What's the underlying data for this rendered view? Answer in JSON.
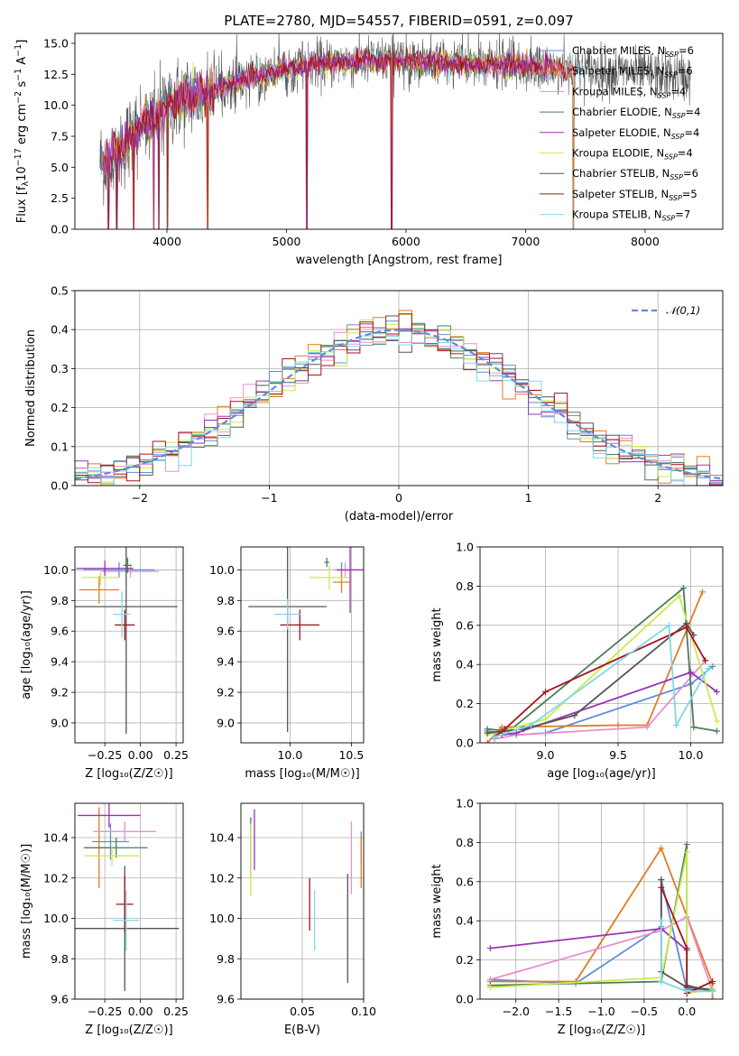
{
  "title": "PLATE=2780, MJD=54557, FIBERID=0591, z=0.097",
  "model_colors": [
    "#5b8fd6",
    "#e07c24",
    "#e88fcf",
    "#4a7c59",
    "#9a32b4",
    "#c9ec4e",
    "#555555",
    "#a3141e",
    "#7fd9e2"
  ],
  "models": [
    {
      "label": "Chabrier MILES, N",
      "sub": "SSP",
      "tail": "=6"
    },
    {
      "label": "Salpeter MILES, N",
      "sub": "SSP",
      "tail": "=6"
    },
    {
      "label": "Kroupa MILES, N",
      "sub": "SSP",
      "tail": "=4"
    },
    {
      "label": "Chabrier ELODIE, N",
      "sub": "SSP",
      "tail": "=4"
    },
    {
      "label": "Salpeter ELODIE, N",
      "sub": "SSP",
      "tail": "=4"
    },
    {
      "label": "Kroupa ELODIE, N",
      "sub": "SSP",
      "tail": "=4"
    },
    {
      "label": "Chabrier STELIB, N",
      "sub": "SSP",
      "tail": "=6"
    },
    {
      "label": "Salpeter STELIB, N",
      "sub": "SSP",
      "tail": "=5"
    },
    {
      "label": "Kroupa STELIB, N",
      "sub": "SSP",
      "tail": "=7"
    }
  ],
  "chart_data": [
    {
      "id": "spectrum",
      "type": "line",
      "xlabel": "wavelength [Angstrom, rest frame]",
      "ylabel_parts": [
        "Flux [f",
        "λ",
        "10",
        "−17",
        " erg cm",
        "−2",
        " s",
        "−1",
        " A",
        "−1",
        "]"
      ],
      "xlim": [
        3230,
        8650
      ],
      "ylim": [
        0,
        15.8
      ],
      "xticks": [
        4000,
        5000,
        6000,
        7000,
        8000
      ],
      "yticks": [
        0.0,
        2.5,
        5.0,
        7.5,
        10.0,
        12.5,
        15.0
      ],
      "ytick_labels": [
        "0.0",
        "2.5",
        "5.0",
        "7.5",
        "10.0",
        "12.5",
        "15.0"
      ],
      "continuum": {
        "x": [
          3450,
          3600,
          3700,
          3800,
          3900,
          4000,
          4100,
          4200,
          4300,
          4400,
          4500,
          4600,
          4700,
          4800,
          4900,
          5000,
          5200,
          5400,
          5600,
          5800,
          6000,
          6200,
          6400,
          6600,
          6800,
          7000,
          7200,
          7400,
          7600,
          7800,
          8000,
          8200,
          8400
        ],
        "y": [
          5.5,
          6.2,
          7.5,
          8.5,
          9.0,
          10.0,
          10.5,
          10.8,
          10.8,
          11.2,
          11.6,
          12.0,
          12.2,
          12.4,
          12.7,
          12.9,
          13.2,
          13.4,
          13.5,
          13.6,
          13.6,
          13.5,
          13.4,
          13.3,
          13.3,
          13.1,
          13.0,
          12.9,
          12.8,
          12.7,
          12.5,
          12.4,
          12.2
        ]
      },
      "spike_wavelengths": [
        3510,
        3580,
        3720,
        3890,
        3930,
        4005,
        4340,
        5170,
        5880,
        7400
      ]
    },
    {
      "id": "residuals",
      "type": "histogram",
      "xlabel": "(data-model)/error",
      "ylabel": "Normed distribution",
      "xlim": [
        -2.5,
        2.5
      ],
      "ylim": [
        0,
        0.5
      ],
      "xticks": [
        -2,
        -1,
        0,
        1,
        2
      ],
      "xtick_labels": [
        "−2",
        "−1",
        "0",
        "1",
        "2"
      ],
      "yticks": [
        0.0,
        0.1,
        0.2,
        0.3,
        0.4,
        0.5
      ],
      "ytick_labels": [
        "0.0",
        "0.1",
        "0.2",
        "0.3",
        "0.4",
        "0.5"
      ],
      "bin_width": 0.1,
      "legend": "𝒩(0,1)",
      "gaussian": {
        "mu": 0,
        "sigma": 1
      }
    },
    {
      "id": "age_vs_Z",
      "type": "scatter_errorbar",
      "xlabel": "Z [log₁₀(Z/Z☉)]",
      "ylabel": "age  [log₁₀(age/yr)]",
      "xlim": [
        -0.46,
        0.3
      ],
      "ylim": [
        8.87,
        10.15
      ],
      "xticks": [
        -0.25,
        0.0,
        0.25
      ],
      "xtick_labels": [
        "−0.25",
        "0.00",
        "0.25"
      ],
      "yticks": [
        9.0,
        9.2,
        9.4,
        9.6,
        9.8,
        10.0
      ],
      "ytick_labels": [
        "9.0",
        "9.2",
        "9.4",
        "9.6",
        "9.8",
        "10.0"
      ],
      "points": [
        {
          "x": -0.15,
          "xerr": 0.25,
          "y": 10.0,
          "yerr": 0.05
        },
        {
          "x": -0.29,
          "xerr": 0.14,
          "y": 9.87,
          "yerr": 0.09
        },
        {
          "x": -0.07,
          "xerr": 0.2,
          "y": 9.99,
          "yerr": 0.04
        },
        {
          "x": -0.09,
          "xerr": 0.03,
          "y": 10.03,
          "yerr": 0.05
        },
        {
          "x": -0.25,
          "xerr": 0.2,
          "y": 10.01,
          "yerr": 0.05
        },
        {
          "x": -0.28,
          "xerr": 0.13,
          "y": 9.95,
          "yerr": 0.05
        },
        {
          "x": -0.1,
          "xerr": 0.36,
          "y": 9.76,
          "yerr": 0.83
        },
        {
          "x": -0.11,
          "xerr": 0.07,
          "y": 9.64,
          "yerr": 0.1
        },
        {
          "x": -0.13,
          "xerr": 0.06,
          "y": 9.71,
          "yerr": 0.15
        }
      ]
    },
    {
      "id": "age_vs_mass",
      "type": "scatter_errorbar",
      "xlabel": "mass [log₁₀(M/M☉)]",
      "ylabel": "",
      "xlim": [
        9.6,
        10.6
      ],
      "ylim": [
        8.87,
        10.15
      ],
      "xticks": [
        10.0,
        10.5
      ],
      "xtick_labels": [
        "10.0",
        "10.5"
      ],
      "yticks": [
        9.0,
        9.2,
        9.4,
        9.6,
        9.8,
        10.0
      ],
      "ytick_labels": [
        "9.0",
        "9.2",
        "9.4",
        "9.6",
        "9.8",
        "10.0"
      ],
      "points": [
        {
          "x": 10.42,
          "xerr": 0.06,
          "y": 10.0,
          "yerr": 0.05
        },
        {
          "x": 10.42,
          "xerr": 0.07,
          "y": 9.92,
          "yerr": 0.07
        },
        {
          "x": 10.45,
          "xerr": 0.1,
          "y": 10.0,
          "yerr": 0.05
        },
        {
          "x": 10.3,
          "xerr": 0.02,
          "y": 10.05,
          "yerr": 0.03
        },
        {
          "x": 10.49,
          "xerr": 0.11,
          "y": 10.0,
          "yerr": 0.28
        },
        {
          "x": 10.32,
          "xerr": 0.16,
          "y": 9.95,
          "yerr": 0.08
        },
        {
          "x": 9.98,
          "xerr": 0.32,
          "y": 9.76,
          "yerr": 0.82
        },
        {
          "x": 10.08,
          "xerr": 0.16,
          "y": 9.64,
          "yerr": 0.1
        },
        {
          "x": 9.98,
          "xerr": 0.11,
          "y": 9.71,
          "yerr": 0.1
        }
      ]
    },
    {
      "id": "massweight_vs_age",
      "type": "line",
      "xlabel": "age  [log₁₀(age/yr)]",
      "ylabel": "mass weight",
      "xlim": [
        8.55,
        10.22
      ],
      "ylim": [
        0,
        1.0
      ],
      "xticks": [
        9.0,
        9.5,
        10.0
      ],
      "xtick_labels": [
        "9.0",
        "9.5",
        "10.0"
      ],
      "yticks": [
        0.0,
        0.2,
        0.4,
        0.6,
        0.8,
        1.0
      ],
      "ytick_labels": [
        "0.0",
        "0.2",
        "0.4",
        "0.6",
        "0.8",
        "1.0"
      ],
      "series": [
        {
          "x": [
            8.6,
            8.8,
            9.0,
            10.0,
            10.15
          ],
          "y": [
            0.06,
            0.04,
            0.05,
            0.3,
            0.39
          ]
        },
        {
          "x": [
            8.6,
            8.7,
            9.5,
            9.7,
            10.08
          ],
          "y": [
            0.0,
            0.08,
            0.09,
            0.09,
            0.77
          ]
        },
        {
          "x": [
            8.65,
            8.8,
            9.7,
            10.1
          ],
          "y": [
            0.02,
            0.04,
            0.08,
            0.42
          ]
        },
        {
          "x": [
            8.6,
            8.75,
            9.95,
            10.02,
            10.18
          ],
          "y": [
            0.07,
            0.06,
            0.79,
            0.08,
            0.06
          ]
        },
        {
          "x": [
            8.7,
            8.8,
            10.0,
            10.18
          ],
          "y": [
            0.04,
            0.05,
            0.36,
            0.26
          ]
        },
        {
          "x": [
            8.6,
            9.0,
            9.92,
            10.18
          ],
          "y": [
            0.04,
            0.12,
            0.75,
            0.11
          ]
        },
        {
          "x": [
            8.6,
            8.85,
            9.2,
            9.97,
            10.02
          ],
          "y": [
            0.05,
            0.07,
            0.14,
            0.61,
            0.55
          ]
        },
        {
          "x": [
            8.65,
            8.72,
            9.0,
            9.97,
            10.1
          ],
          "y": [
            0.03,
            0.07,
            0.26,
            0.59,
            0.42
          ]
        },
        {
          "x": [
            8.65,
            8.9,
            9.85,
            9.9,
            10.12
          ],
          "y": [
            0.03,
            0.09,
            0.6,
            0.09,
            0.38
          ]
        }
      ]
    },
    {
      "id": "mass_vs_Z",
      "type": "scatter_errorbar",
      "xlabel": "Z [log₁₀(Z/Z☉)]",
      "ylabel": "mass [log₁₀(M/M☉)]",
      "xlim": [
        -0.46,
        0.3
      ],
      "ylim": [
        9.6,
        10.57
      ],
      "xticks": [
        -0.25,
        0.0,
        0.25
      ],
      "xtick_labels": [
        "−0.25",
        "0.00",
        "0.25"
      ],
      "yticks": [
        9.6,
        9.8,
        10.0,
        10.2,
        10.4
      ],
      "ytick_labels": [
        "9.6",
        "9.8",
        "10.0",
        "10.2",
        "10.4"
      ],
      "points": [
        {
          "x": -0.21,
          "xerr": 0.13,
          "y": 10.38,
          "yerr": 0.09
        },
        {
          "x": -0.29,
          "xerr": 0.11,
          "y": 10.35,
          "yerr": 0.2
        },
        {
          "x": -0.11,
          "xerr": 0.22,
          "y": 10.43,
          "yerr": 0.05
        },
        {
          "x": -0.17,
          "xerr": 0.22,
          "y": 10.35,
          "yerr": 0.05
        },
        {
          "x": -0.22,
          "xerr": 0.22,
          "y": 10.51,
          "yerr": 0.06
        },
        {
          "x": -0.2,
          "xerr": 0.19,
          "y": 10.31,
          "yerr": 0.05
        },
        {
          "x": -0.11,
          "xerr": 0.38,
          "y": 9.95,
          "yerr": 0.31
        },
        {
          "x": -0.11,
          "xerr": 0.06,
          "y": 10.07,
          "yerr": 0.14
        },
        {
          "x": -0.1,
          "xerr": 0.09,
          "y": 9.99,
          "yerr": 0.15
        }
      ]
    },
    {
      "id": "mass_vs_EBV",
      "type": "scatter_errorbar",
      "xlabel": "E(B-V)",
      "ylabel": "",
      "xlim": [
        0.0,
        0.1
      ],
      "ylim": [
        9.6,
        10.57
      ],
      "xticks": [
        0.05,
        0.1
      ],
      "xtick_labels": [
        "0.05",
        "0.10"
      ],
      "yticks": [
        9.6,
        9.8,
        10.0,
        10.2,
        10.4
      ],
      "ytick_labels": [
        "9.6",
        "9.8",
        "10.0",
        "10.2",
        "10.4"
      ],
      "points": [
        {
          "x": 0.098,
          "xerr": 0,
          "y": 10.35,
          "yerr": 0.08
        },
        {
          "x": 0.098,
          "xerr": 0,
          "y": 10.28,
          "yerr": 0.13
        },
        {
          "x": 0.09,
          "xerr": 0,
          "y": 10.3,
          "yerr": 0.18
        },
        {
          "x": 0.008,
          "xerr": 0,
          "y": 10.35,
          "yerr": 0.15
        },
        {
          "x": 0.011,
          "xerr": 0,
          "y": 10.39,
          "yerr": 0.15
        },
        {
          "x": 0.008,
          "xerr": 0,
          "y": 10.29,
          "yerr": 0.18
        },
        {
          "x": 0.087,
          "xerr": 0,
          "y": 9.95,
          "yerr": 0.27
        },
        {
          "x": 0.056,
          "xerr": 0,
          "y": 10.07,
          "yerr": 0.13
        },
        {
          "x": 0.06,
          "xerr": 0,
          "y": 9.99,
          "yerr": 0.15
        }
      ]
    },
    {
      "id": "massweight_vs_Z",
      "type": "line",
      "xlabel": "Z [log₁₀(Z/Z☉)]",
      "ylabel": "mass weight",
      "xlim": [
        -2.42,
        0.42
      ],
      "ylim": [
        0,
        1.0
      ],
      "xticks": [
        -2.0,
        -1.5,
        -1.0,
        -0.5,
        0.0
      ],
      "xtick_labels": [
        "−2.0",
        "−1.5",
        "−1.0",
        "−0.5",
        "0.0"
      ],
      "yticks": [
        0.0,
        0.2,
        0.4,
        0.6,
        0.8,
        1.0
      ],
      "ytick_labels": [
        "0.0",
        "0.2",
        "0.4",
        "0.6",
        "0.8",
        "1.0"
      ],
      "series": [
        {
          "x": [
            -2.3,
            -1.3,
            -0.3,
            -0.3,
            0.0,
            0.3
          ],
          "y": [
            0.1,
            0.08,
            0.37,
            0.61,
            0.05,
            0.05
          ]
        },
        {
          "x": [
            -2.3,
            -1.3,
            -0.3,
            0.3,
            0.3
          ],
          "y": [
            0.09,
            0.09,
            0.77,
            0.08,
            0.0
          ]
        },
        {
          "x": [
            -2.3,
            -0.3,
            0.0,
            0.3
          ],
          "y": [
            0.1,
            0.35,
            0.42,
            0.04
          ]
        },
        {
          "x": [
            -2.3,
            -0.3,
            0.0,
            0.0,
            0.3
          ],
          "y": [
            0.07,
            0.09,
            0.79,
            0.06,
            0.05
          ]
        },
        {
          "x": [
            -2.3,
            -0.3,
            0.0
          ],
          "y": [
            0.26,
            0.36,
            0.25
          ]
        },
        {
          "x": [
            -2.3,
            -0.3,
            0.0,
            0.0,
            0.3
          ],
          "y": [
            0.06,
            0.11,
            0.75,
            0.03,
            0.05
          ]
        },
        {
          "x": [
            -0.3,
            -0.3,
            0.0,
            0.0,
            0.3
          ],
          "y": [
            0.61,
            0.14,
            0.06,
            0.07,
            0.04
          ]
        },
        {
          "x": [
            -0.3,
            0.0,
            0.0,
            0.3
          ],
          "y": [
            0.57,
            0.26,
            0.03,
            0.09
          ]
        },
        {
          "x": [
            -0.3,
            -0.3,
            0.0,
            0.3
          ],
          "y": [
            0.4,
            0.09,
            0.04,
            0.04
          ]
        }
      ]
    }
  ]
}
